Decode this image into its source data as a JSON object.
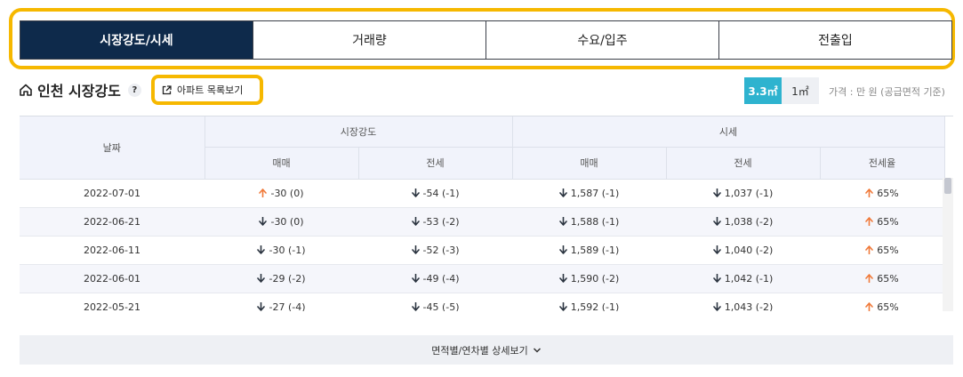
{
  "tabs": [
    {
      "label": "시장강도/시세",
      "active": true
    },
    {
      "label": "거래량",
      "active": false
    },
    {
      "label": "수요/입주",
      "active": false
    },
    {
      "label": "전출입",
      "active": false
    }
  ],
  "section": {
    "title": "인천 시장강도",
    "help": "?",
    "apt_button": "아파트 목록보기"
  },
  "units": {
    "active": "3.3㎡",
    "inactive": "1㎡"
  },
  "price_note": "가격 : 만 원 (공급면적 기준)",
  "table": {
    "date_header": "날짜",
    "group_headers": [
      "시장강도",
      "시세"
    ],
    "sub_headers": [
      "매매",
      "전세",
      "매매",
      "전세",
      "전세율"
    ],
    "rows": [
      {
        "date": "2022-07-01",
        "cells": [
          {
            "v": "-30 (0)",
            "dir": "up"
          },
          {
            "v": "-54 (-1)",
            "dir": "down"
          },
          {
            "v": "1,587 (-1)",
            "dir": "down"
          },
          {
            "v": "1,037 (-1)",
            "dir": "down"
          },
          {
            "v": "65%",
            "dir": "up"
          }
        ]
      },
      {
        "date": "2022-06-21",
        "cells": [
          {
            "v": "-30 (0)",
            "dir": "down"
          },
          {
            "v": "-53 (-2)",
            "dir": "down"
          },
          {
            "v": "1,588 (-1)",
            "dir": "down"
          },
          {
            "v": "1,038 (-2)",
            "dir": "down"
          },
          {
            "v": "65%",
            "dir": "up"
          }
        ]
      },
      {
        "date": "2022-06-11",
        "cells": [
          {
            "v": "-30 (-1)",
            "dir": "down"
          },
          {
            "v": "-52 (-3)",
            "dir": "down"
          },
          {
            "v": "1,589 (-1)",
            "dir": "down"
          },
          {
            "v": "1,040 (-2)",
            "dir": "down"
          },
          {
            "v": "65%",
            "dir": "up"
          }
        ]
      },
      {
        "date": "2022-06-01",
        "cells": [
          {
            "v": "-29 (-2)",
            "dir": "down"
          },
          {
            "v": "-49 (-4)",
            "dir": "down"
          },
          {
            "v": "1,590 (-2)",
            "dir": "down"
          },
          {
            "v": "1,042 (-1)",
            "dir": "down"
          },
          {
            "v": "65%",
            "dir": "up"
          }
        ]
      },
      {
        "date": "2022-05-21",
        "cells": [
          {
            "v": "-27 (-4)",
            "dir": "down"
          },
          {
            "v": "-45 (-5)",
            "dir": "down"
          },
          {
            "v": "1,592 (-1)",
            "dir": "down"
          },
          {
            "v": "1,043 (-2)",
            "dir": "down"
          },
          {
            "v": "65%",
            "dir": "up"
          }
        ]
      }
    ]
  },
  "detail_button": "면적별/연차별 상세보기",
  "colors": {
    "up": "#f07a3a",
    "down": "#2b3440",
    "active_tab": "#0e2a4b",
    "unit_active": "#2eb3cf",
    "highlight": "#f6b800"
  }
}
